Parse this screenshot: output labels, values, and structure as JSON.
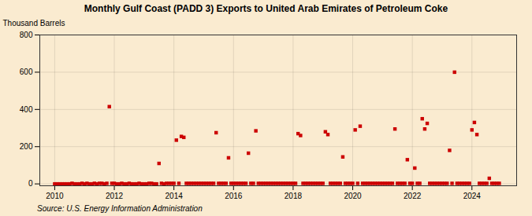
{
  "chart_data": {
    "type": "scatter",
    "title": "Monthly Gulf Coast (PADD 3) Exports to United Arab Emirates of Petroleum Coke",
    "ylabel": "Thousand Barrels",
    "source": "Source: U.S. Energy Information Administration",
    "color": "#cc0000",
    "marker": "square",
    "grid": true,
    "xlim": [
      2009.5,
      2025.5
    ],
    "ylim": [
      -10,
      800
    ],
    "xticks": [
      2010,
      2012,
      2014,
      2016,
      2018,
      2020,
      2022,
      2024
    ],
    "yticks": [
      0,
      200,
      400,
      600,
      800
    ],
    "x": [
      2010.0,
      2010.083,
      2010.167,
      2010.25,
      2010.333,
      2010.417,
      2010.5,
      2010.583,
      2010.667,
      2010.75,
      2010.833,
      2010.917,
      2011.0,
      2011.083,
      2011.167,
      2011.25,
      2011.333,
      2011.417,
      2011.5,
      2011.583,
      2011.667,
      2011.75,
      2011.833,
      2011.917,
      2012.0,
      2012.083,
      2012.167,
      2012.25,
      2012.333,
      2012.417,
      2012.5,
      2012.583,
      2012.667,
      2012.75,
      2012.833,
      2012.917,
      2013.0,
      2013.083,
      2013.167,
      2013.25,
      2013.333,
      2013.417,
      2013.5,
      2013.583,
      2013.667,
      2013.75,
      2013.833,
      2013.917,
      2014.0,
      2014.083,
      2014.167,
      2014.25,
      2014.333,
      2014.417,
      2014.5,
      2014.583,
      2014.667,
      2014.75,
      2014.833,
      2014.917,
      2015.0,
      2015.083,
      2015.167,
      2015.25,
      2015.333,
      2015.417,
      2015.5,
      2015.583,
      2015.667,
      2015.75,
      2015.833,
      2015.917,
      2016.0,
      2016.083,
      2016.167,
      2016.25,
      2016.333,
      2016.417,
      2016.5,
      2016.583,
      2016.667,
      2016.75,
      2016.833,
      2016.917,
      2017.0,
      2017.083,
      2017.167,
      2017.25,
      2017.333,
      2017.417,
      2017.5,
      2017.583,
      2017.667,
      2017.75,
      2017.833,
      2017.917,
      2018.0,
      2018.083,
      2018.167,
      2018.25,
      2018.333,
      2018.417,
      2018.5,
      2018.583,
      2018.667,
      2018.75,
      2018.833,
      2018.917,
      2019.0,
      2019.083,
      2019.167,
      2019.25,
      2019.333,
      2019.417,
      2019.5,
      2019.583,
      2019.667,
      2019.75,
      2019.833,
      2019.917,
      2020.0,
      2020.083,
      2020.167,
      2020.25,
      2020.333,
      2020.417,
      2020.5,
      2020.583,
      2020.667,
      2020.75,
      2020.833,
      2020.917,
      2021.0,
      2021.083,
      2021.167,
      2021.25,
      2021.333,
      2021.417,
      2021.5,
      2021.583,
      2021.667,
      2021.75,
      2021.833,
      2021.917,
      2022.0,
      2022.083,
      2022.167,
      2022.25,
      2022.333,
      2022.417,
      2022.5,
      2022.583,
      2022.667,
      2022.75,
      2022.833,
      2022.917,
      2023.0,
      2023.083,
      2023.167,
      2023.25,
      2023.333,
      2023.417,
      2023.5,
      2023.583,
      2023.667,
      2023.75,
      2023.833,
      2023.917,
      2024.0,
      2024.083,
      2024.167,
      2024.25,
      2024.333,
      2024.417,
      2024.5,
      2024.583,
      2024.667,
      2024.75,
      2024.833,
      2024.917
    ],
    "values": [
      0,
      0,
      0,
      0,
      0,
      0,
      0,
      3,
      0,
      0,
      0,
      3,
      0,
      3,
      0,
      0,
      3,
      0,
      3,
      3,
      0,
      3,
      415,
      3,
      3,
      0,
      0,
      3,
      0,
      0,
      3,
      0,
      0,
      0,
      3,
      0,
      0,
      0,
      3,
      3,
      0,
      0,
      110,
      3,
      0,
      3,
      3,
      3,
      3,
      235,
      3,
      255,
      250,
      3,
      3,
      3,
      3,
      3,
      3,
      3,
      3,
      3,
      3,
      3,
      3,
      275,
      3,
      3,
      3,
      3,
      140,
      3,
      3,
      3,
      3,
      3,
      3,
      3,
      165,
      3,
      3,
      285,
      3,
      3,
      3,
      3,
      3,
      3,
      3,
      3,
      3,
      3,
      3,
      3,
      3,
      3,
      3,
      3,
      270,
      260,
      3,
      3,
      3,
      3,
      3,
      3,
      3,
      3,
      3,
      280,
      265,
      3,
      3,
      3,
      3,
      3,
      145,
      3,
      3,
      3,
      3,
      290,
      3,
      310,
      3,
      3,
      3,
      3,
      3,
      3,
      3,
      3,
      3,
      3,
      3,
      3,
      3,
      295,
      3,
      3,
      3,
      3,
      130,
      3,
      3,
      85,
      3,
      3,
      350,
      295,
      325,
      3,
      3,
      3,
      3,
      3,
      3,
      3,
      3,
      180,
      3,
      600,
      3,
      3,
      3,
      3,
      3,
      3,
      290,
      330,
      265,
      3,
      3,
      3,
      3,
      30,
      3,
      3,
      3,
      3
    ]
  }
}
